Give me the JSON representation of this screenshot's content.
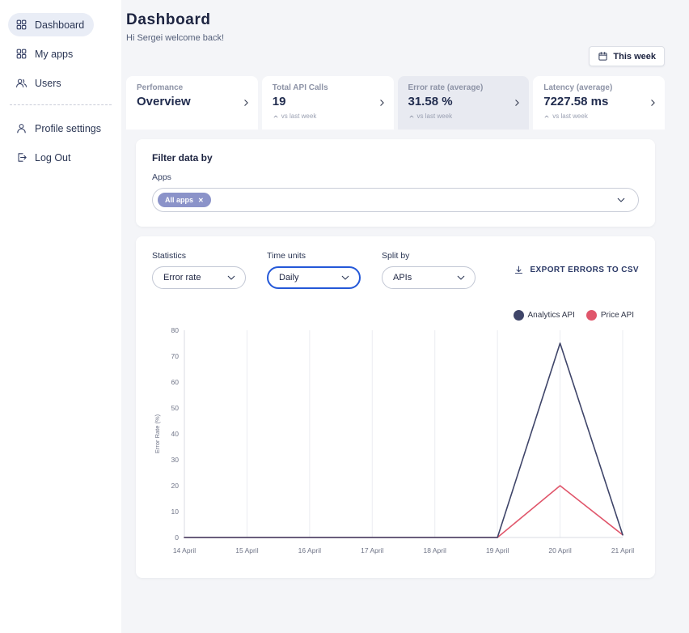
{
  "colors": {
    "accent": "#2458d8",
    "chip": "#8b93c9",
    "navy": "#1c2340"
  },
  "sidebar": {
    "items": [
      {
        "label": "Dashboard",
        "icon": "dashboard-grid-icon",
        "active": true
      },
      {
        "label": "My apps",
        "icon": "apps-grid-icon",
        "active": false
      },
      {
        "label": "Users",
        "icon": "users-icon",
        "active": false
      }
    ],
    "footer_items": [
      {
        "label": "Profile settings",
        "icon": "profile-icon"
      },
      {
        "label": "Log Out",
        "icon": "logout-icon"
      }
    ]
  },
  "header": {
    "title": "Dashboard",
    "subtitle": "Hi Sergei welcome back!",
    "period_button": "This week"
  },
  "stat_cards": [
    {
      "label": "Perfomance",
      "value": "Overview",
      "trend": "",
      "selected": false
    },
    {
      "label": "Total API Calls",
      "value": "19",
      "trend": "vs last week",
      "selected": false
    },
    {
      "label": "Error rate (average)",
      "value": "31.58 %",
      "trend": "vs last week",
      "selected": true
    },
    {
      "label": "Latency (average)",
      "value": "7227.58 ms",
      "trend": "vs last week",
      "selected": false
    }
  ],
  "filter_panel": {
    "title": "Filter data by",
    "field_label": "Apps",
    "chip_label": "All apps",
    "chip_remove": "✕"
  },
  "chart_panel": {
    "controls": [
      {
        "label": "Statistics",
        "value": "Error rate",
        "focused": false
      },
      {
        "label": "Time units",
        "value": "Daily",
        "focused": true
      },
      {
        "label": "Split by",
        "value": "APIs",
        "focused": false
      }
    ],
    "export_label": "EXPORT ERRORS TO CSV"
  },
  "chart_data": {
    "type": "line",
    "x": [
      "14 April",
      "15 April",
      "16 April",
      "17 April",
      "18 April",
      "19 April",
      "20 April",
      "21 April"
    ],
    "series": [
      {
        "name": "Analytics API",
        "color": "#3f4569",
        "values": [
          0,
          0,
          0,
          0,
          0,
          0,
          75,
          1
        ]
      },
      {
        "name": "Price API",
        "color": "#e0566b",
        "values": [
          0,
          0,
          0,
          0,
          0,
          0,
          20,
          1
        ]
      }
    ],
    "ylabel": "Error Rate (%)",
    "ylim": [
      0,
      80
    ],
    "yticks": [
      0,
      10,
      20,
      30,
      40,
      50,
      60,
      70,
      80
    ],
    "grid": "vertical",
    "legend_position": "top-right"
  }
}
